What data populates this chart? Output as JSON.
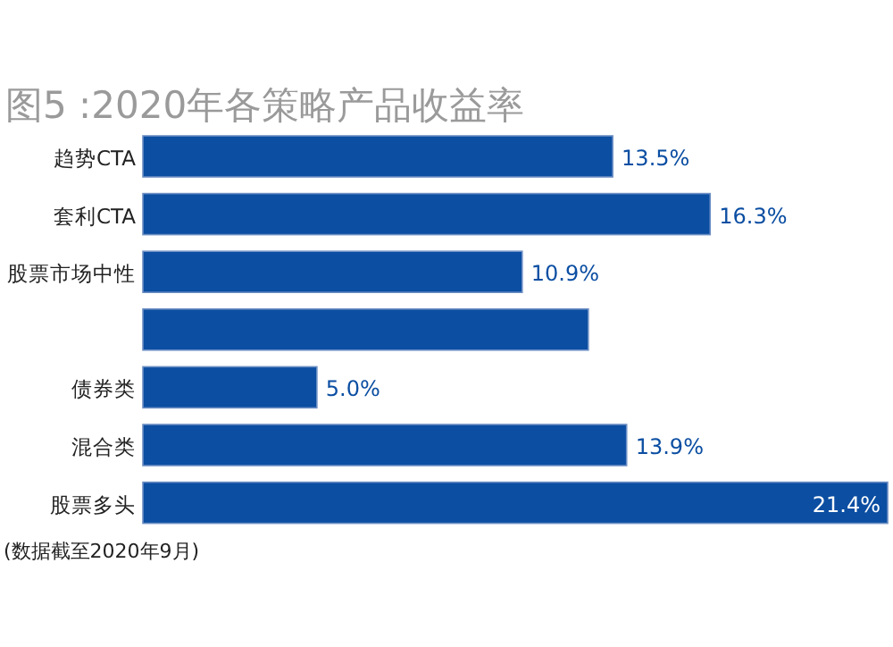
{
  "chart_data": {
    "type": "bar",
    "orientation": "horizontal",
    "title": "图5 :2020年各策略产品收益率",
    "categories": [
      "趋势CTA",
      "套利CTA",
      "股票市场中性",
      null,
      "债券类",
      "混合类",
      "股票多头"
    ],
    "values": [
      13.5,
      16.3,
      10.9,
      12.8,
      5.0,
      13.9,
      21.4
    ],
    "value_labels": [
      "13.5%",
      "16.3%",
      "10.9%",
      null,
      "5.0%",
      "13.9%",
      "21.4%"
    ],
    "color": "#0b4ea2",
    "annotations": [
      "(数据截至2020年9月)"
    ]
  }
}
